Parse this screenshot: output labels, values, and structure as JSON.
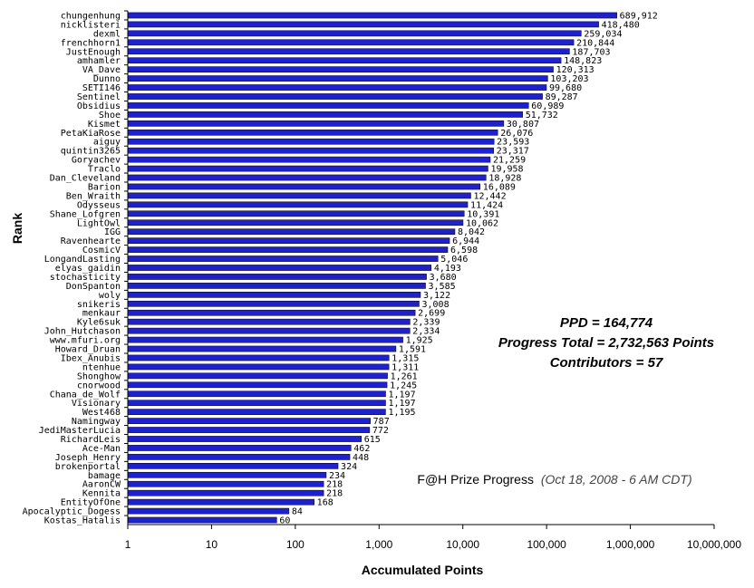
{
  "chart_data": {
    "type": "bar",
    "orientation": "horizontal",
    "xscale": "log",
    "xlim": [
      1,
      10000000
    ],
    "xticks": [
      "1",
      "10",
      "100",
      "1,000",
      "10,000",
      "100,000",
      "1,000,000",
      "10,000,000"
    ],
    "xlabel": "Accumulated Points",
    "ylabel": "Rank",
    "bar_color": "#1f22cc",
    "grid": false,
    "categories": [
      "chungenhung",
      "nicklisteri",
      "dexml",
      "frenchhorn1",
      "JustEnough",
      "amhamler",
      "VA_Dave",
      "Dunno",
      "SETI146",
      "Sentinel",
      "Obsidius",
      "Shoe",
      "Kismet",
      "PetaKiaRose",
      "aiguy",
      "quintin3265",
      "Goryachev",
      "Traclo",
      "Dan_Cleveland",
      "Barion",
      "Ben_Wraith",
      "Odysseus",
      "Shane_Lofgren",
      "LightOwl",
      "IGG",
      "Ravenhearte",
      "CosmicV",
      "LongandLasting",
      "elyas_gaidin",
      "stochasticity",
      "DonSpanton",
      "woly",
      "snikeris",
      "menkaur",
      "Kyle6suk",
      "John_Hutchason",
      "www.mfuri.org",
      "Howard_Druan",
      "Ibex_Anubis",
      "ntenhue",
      "Shonghow",
      "cnorwood",
      "Chana_de_Wolf",
      "Visionary",
      "West468",
      "Namingway",
      "JediMasterLucia",
      "RichardLeis",
      "Ace-Man",
      "Joseph_Henry",
      "brokenportal",
      "bamage",
      "AaronCW",
      "Kennita",
      "EntityOfOne",
      "Apocalyptic_Dogess",
      "Kostas_Hatalis"
    ],
    "values": [
      689912,
      418480,
      259034,
      210844,
      187703,
      148823,
      120313,
      103203,
      99680,
      89287,
      60989,
      51732,
      30807,
      26076,
      23593,
      23317,
      21259,
      19958,
      18928,
      16089,
      12442,
      11424,
      10391,
      10062,
      8042,
      6944,
      6598,
      5046,
      4193,
      3680,
      3585,
      3122,
      3008,
      2699,
      2339,
      2334,
      1925,
      1591,
      1315,
      1311,
      1261,
      1245,
      1197,
      1197,
      1195,
      787,
      772,
      615,
      462,
      448,
      324,
      234,
      218,
      218,
      168,
      84,
      60
    ],
    "value_labels": [
      "689,912",
      "418,480",
      "259,034",
      "210,844",
      "187,703",
      "148,823",
      "120,313",
      "103,203",
      "99,680",
      "89,287",
      "60,989",
      "51,732",
      "30,807",
      "26,076",
      "23,593",
      "23,317",
      "21,259",
      "19,958",
      "18,928",
      "16,089",
      "12,442",
      "11,424",
      "10,391",
      "10,062",
      "8,042",
      "6,944",
      "6,598",
      "5,046",
      "4,193",
      "3,680",
      "3,585",
      "3,122",
      "3,008",
      "2,699",
      "2,339",
      "2,334",
      "1,925",
      "1,591",
      "1,315",
      "1,311",
      "1,261",
      "1,245",
      "1,197",
      "1,197",
      "1,195",
      "787",
      "772",
      "615",
      "462",
      "448",
      "324",
      "234",
      "218",
      "218",
      "168",
      "84",
      "60"
    ],
    "annotations": {
      "ppd": "PPD = 164,774",
      "progress_total": "Progress Total = 2,732,563 Points",
      "contributors": "Contributors = 57",
      "title_main": "F@H Prize Progress",
      "title_date": "(Oct 18, 2008 - 6 AM CDT)"
    }
  }
}
